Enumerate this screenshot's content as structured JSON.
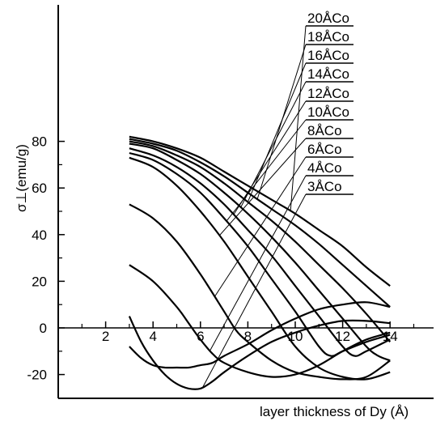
{
  "chart_data": {
    "type": "line",
    "title": "",
    "xlabel": "layer thickness of Dy (Å)",
    "ylabel": "σ⊥(emu/g)",
    "xlim": [
      0,
      15.5
    ],
    "ylim": [
      -30,
      130
    ],
    "x_ticks": [
      2,
      4,
      6,
      8,
      10,
      12,
      14
    ],
    "y_ticks": [
      80,
      60,
      40,
      20,
      0,
      -20
    ],
    "x_tick_labels": [
      "2",
      "4",
      "6",
      "8",
      "10",
      "12",
      "14"
    ],
    "y_tick_labels": [
      "80",
      "60",
      "40",
      "20",
      "0",
      "-20"
    ],
    "legend": "callout labels at top-right, leader lines to each curve",
    "grid": false,
    "series": [
      {
        "name": "20ÅCo",
        "x": [
          3,
          4,
          5,
          6,
          7,
          8,
          9,
          10,
          11,
          12,
          13,
          14
        ],
        "y": [
          82,
          80,
          77,
          73,
          67,
          61,
          55,
          49,
          42,
          35,
          26,
          18
        ]
      },
      {
        "name": "18ÅCo",
        "x": [
          3,
          4,
          5,
          6,
          7,
          8,
          9,
          10,
          11,
          12,
          13,
          14
        ],
        "y": [
          81,
          79,
          76,
          71,
          65,
          58,
          51,
          44,
          36,
          27,
          18,
          9
        ]
      },
      {
        "name": "16ÅCo",
        "x": [
          3,
          4,
          5,
          6,
          7,
          8,
          9,
          10,
          11,
          12,
          13,
          14
        ],
        "y": [
          80,
          78,
          74,
          69,
          62,
          54,
          46,
          37,
          27,
          17,
          6,
          -6
        ]
      },
      {
        "name": "14ÅCo",
        "x": [
          3,
          4,
          5,
          6,
          7,
          8,
          9,
          10,
          11,
          12,
          13,
          13.5,
          14
        ],
        "y": [
          79,
          77,
          72,
          66,
          58,
          49,
          39,
          28,
          16,
          4,
          -8,
          -12,
          -14
        ]
      },
      {
        "name": "12ÅCo",
        "x": [
          3,
          4,
          5,
          6,
          7,
          8,
          9,
          10,
          11,
          12,
          12.5,
          13,
          14
        ],
        "y": [
          77,
          74,
          69,
          62,
          53,
          42,
          31,
          18,
          5,
          -8,
          -12,
          -10,
          -5
        ]
      },
      {
        "name": "10ÅCo",
        "x": [
          3,
          4,
          5,
          6,
          7,
          8,
          9,
          10,
          11,
          11.5,
          12,
          13,
          14
        ],
        "y": [
          75,
          72,
          66,
          58,
          47,
          35,
          21,
          7,
          -8,
          -12,
          -10,
          -6,
          -3
        ]
      },
      {
        "name": "8ÅCo",
        "x": [
          3,
          4,
          5,
          6,
          7,
          8,
          9,
          10,
          11,
          12,
          13,
          14
        ],
        "y": [
          73,
          69,
          61,
          50,
          37,
          22,
          7,
          -8,
          -17,
          -21,
          -22,
          -19
        ]
      },
      {
        "name": "6ÅCo",
        "x": [
          3,
          4,
          5,
          6,
          7,
          7.5,
          8,
          9,
          10,
          11,
          12,
          13,
          14
        ],
        "y": [
          53,
          47,
          37,
          23,
          7,
          -1,
          -6,
          -14,
          -19,
          -21,
          -22,
          -21,
          -14
        ]
      },
      {
        "name": "4ÅCo",
        "x": [
          3,
          4,
          5,
          5.5,
          6,
          6.5,
          7,
          8,
          9,
          10,
          11,
          12,
          13,
          14
        ],
        "y": [
          27,
          20,
          9,
          2,
          -5,
          -11,
          -15,
          -19,
          -21,
          -20,
          -16,
          -10,
          -5,
          -2
        ]
      },
      {
        "name": "3ÅCo",
        "x": [
          3,
          3.5,
          4,
          4.5,
          5,
          5.5,
          6,
          6.5,
          7,
          8,
          9,
          10,
          11,
          12,
          13,
          14
        ],
        "y": [
          5,
          -6,
          -14,
          -20,
          -24,
          -26,
          -26,
          -23,
          -19,
          -12,
          -6,
          -2,
          1,
          3,
          3,
          2
        ]
      },
      {
        "name": "",
        "x": [
          3,
          3.5,
          4,
          4.5,
          5,
          5.5,
          6,
          6.5,
          7,
          8,
          9,
          10,
          11,
          12,
          13,
          14
        ],
        "y": [
          -8,
          -13,
          -16,
          -17,
          -17,
          -17,
          -16,
          -15,
          -12,
          -7,
          -1,
          4,
          8,
          10,
          11,
          9
        ]
      }
    ]
  },
  "colors": {
    "line": "#000000",
    "background": "#ffffff"
  }
}
